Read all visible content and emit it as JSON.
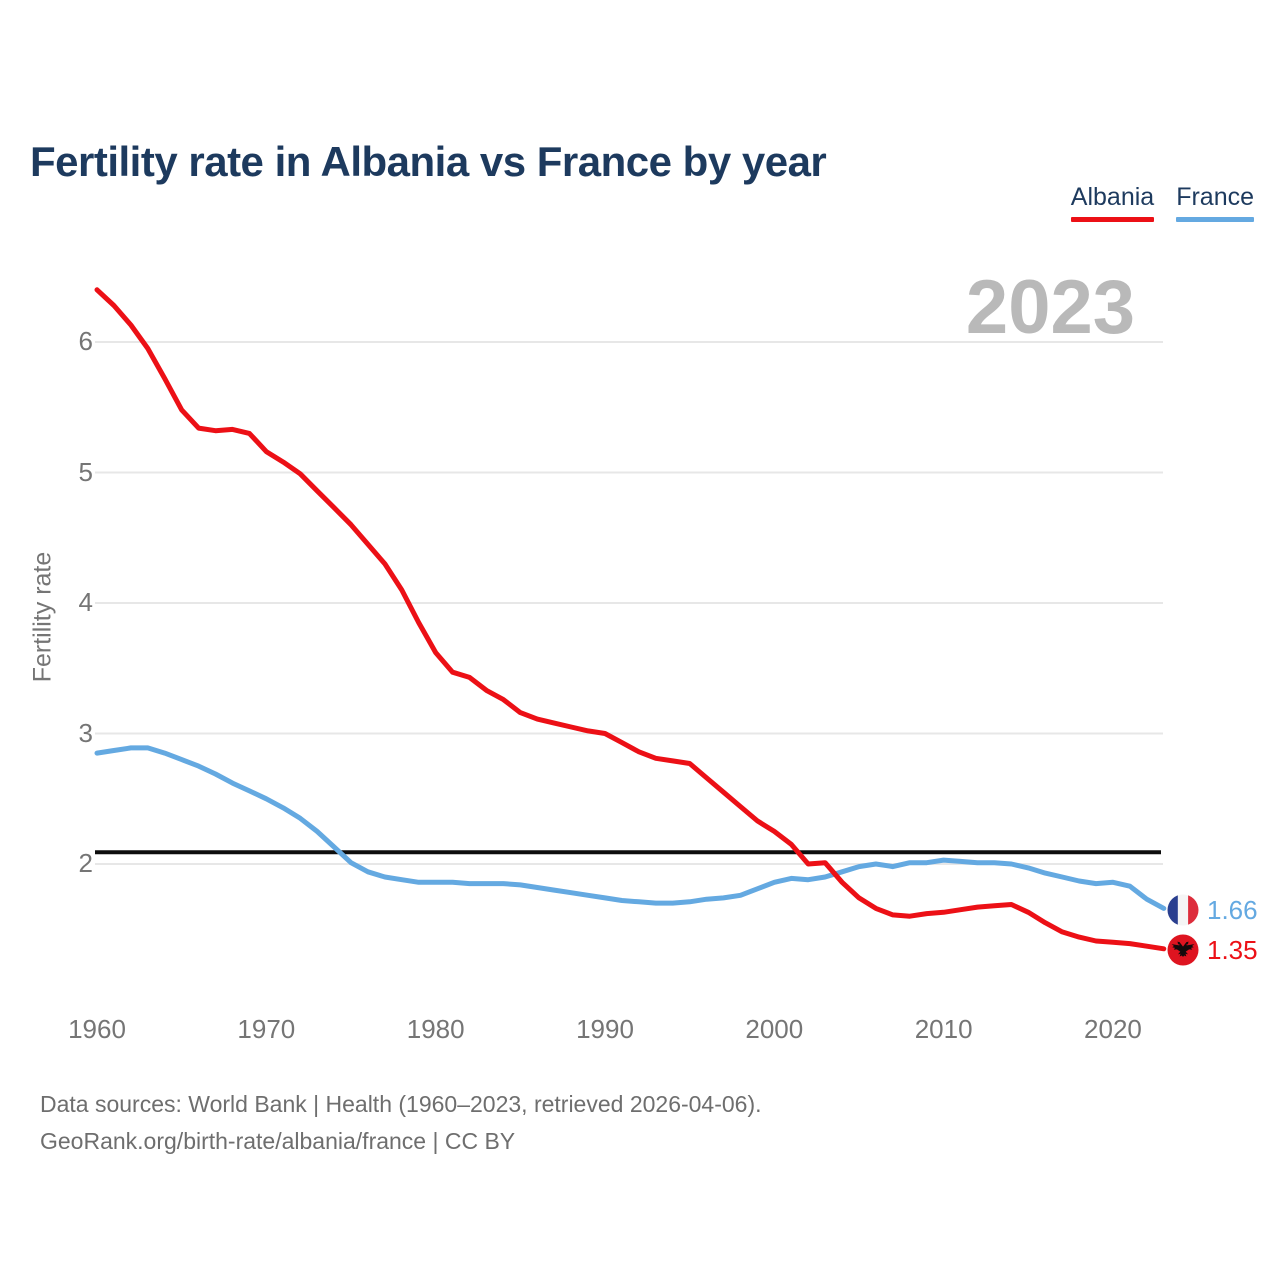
{
  "header": {
    "title": "Fertility rate in Albania vs France by year"
  },
  "legend": [
    {
      "label": "Albania",
      "color": "#ec1016"
    },
    {
      "label": "France",
      "color": "#64a9e1"
    }
  ],
  "watermark": "2023",
  "axes": {
    "y_label": "Fertility rate",
    "y_ticks": [
      2,
      3,
      4,
      5,
      6
    ],
    "x_ticks": [
      1960,
      1970,
      1980,
      1990,
      2000,
      2010,
      2020
    ]
  },
  "reference_line": {
    "value": 2.09,
    "color": "#0d0d0d"
  },
  "end_labels": {
    "france": {
      "value": "1.66",
      "flag": "france-flag-icon"
    },
    "albania": {
      "value": "1.35",
      "flag": "albania-flag-icon"
    }
  },
  "footer": {
    "line1": "Data sources: World Bank | Health (1960–2023, retrieved 2026-04-06).",
    "line2": "GeoRank.org/birth-rate/albania/france | CC BY"
  },
  "chart_data": {
    "type": "line",
    "title": "Fertility rate in Albania vs France by year",
    "ylabel": "Fertility rate",
    "xlim": [
      1960,
      2023
    ],
    "ylim": [
      1.2,
      6.55
    ],
    "grid": "horizontal",
    "legend_position": "top-right",
    "annotations": {
      "watermark_year": "2023",
      "replacement_line": 2.09
    },
    "x": [
      1960,
      1961,
      1962,
      1963,
      1964,
      1965,
      1966,
      1967,
      1968,
      1969,
      1970,
      1971,
      1972,
      1973,
      1974,
      1975,
      1976,
      1977,
      1978,
      1979,
      1980,
      1981,
      1982,
      1983,
      1984,
      1985,
      1986,
      1987,
      1988,
      1989,
      1990,
      1991,
      1992,
      1993,
      1994,
      1995,
      1996,
      1997,
      1998,
      1999,
      2000,
      2001,
      2002,
      2003,
      2004,
      2005,
      2006,
      2007,
      2008,
      2009,
      2010,
      2011,
      2012,
      2013,
      2014,
      2015,
      2016,
      2017,
      2018,
      2019,
      2020,
      2021,
      2022,
      2023
    ],
    "series": [
      {
        "name": "France",
        "color": "#64a9e1",
        "end_value": 1.66,
        "values": [
          2.85,
          2.87,
          2.89,
          2.89,
          2.85,
          2.8,
          2.75,
          2.69,
          2.62,
          2.56,
          2.5,
          2.43,
          2.35,
          2.25,
          2.13,
          2.01,
          1.94,
          1.9,
          1.88,
          1.86,
          1.86,
          1.86,
          1.85,
          1.85,
          1.85,
          1.84,
          1.82,
          1.8,
          1.78,
          1.76,
          1.74,
          1.72,
          1.71,
          1.7,
          1.7,
          1.71,
          1.73,
          1.74,
          1.76,
          1.81,
          1.86,
          1.89,
          1.88,
          1.9,
          1.94,
          1.98,
          2.0,
          1.98,
          2.01,
          2.01,
          2.03,
          2.02,
          2.01,
          2.01,
          2.0,
          1.97,
          1.93,
          1.9,
          1.87,
          1.85,
          1.86,
          1.83,
          1.73,
          1.66
        ]
      },
      {
        "name": "Albania",
        "color": "#ec1016",
        "end_value": 1.35,
        "values": [
          6.4,
          6.28,
          6.13,
          5.95,
          5.72,
          5.48,
          5.34,
          5.32,
          5.33,
          5.3,
          5.16,
          5.08,
          4.99,
          4.86,
          4.73,
          4.6,
          4.45,
          4.3,
          4.1,
          3.85,
          3.62,
          3.47,
          3.43,
          3.33,
          3.26,
          3.16,
          3.11,
          3.08,
          3.05,
          3.02,
          3.0,
          2.93,
          2.86,
          2.81,
          2.79,
          2.77,
          2.66,
          2.55,
          2.44,
          2.33,
          2.25,
          2.15,
          2.0,
          2.01,
          1.86,
          1.74,
          1.66,
          1.61,
          1.6,
          1.62,
          1.63,
          1.65,
          1.67,
          1.68,
          1.69,
          1.63,
          1.55,
          1.48,
          1.44,
          1.41,
          1.4,
          1.39,
          1.37,
          1.35
        ]
      }
    ]
  }
}
